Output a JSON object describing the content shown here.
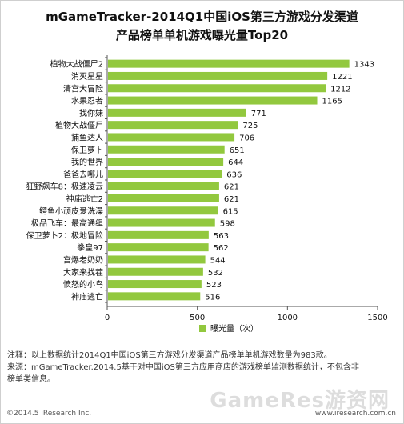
{
  "chart_data": {
    "type": "bar",
    "orientation": "horizontal",
    "title": "mGameTracker-2014Q1中国iOS第三方游戏分发渠道",
    "subtitle": "产品榜单单机游戏曝光量Top20",
    "categories": [
      "植物大战僵尸2",
      "消灭星星",
      "清宫大冒险",
      "水果忍者",
      "找你妹",
      "植物大战僵尸",
      "捕鱼达人",
      "保卫萝卜",
      "我的世界",
      "爸爸去哪儿",
      "狂野飙车8：极速凌云",
      "神庙逃亡2",
      "鳄鱼小顽皮爱洗澡",
      "极品飞车：最高通缉",
      "保卫萝卜2：极地冒险",
      "拳皇97",
      "宫爆老奶奶",
      "大家来找茬",
      "愤怒的小鸟",
      "神庙逃亡"
    ],
    "values": [
      1343,
      1221,
      1212,
      1165,
      771,
      725,
      706,
      651,
      644,
      636,
      621,
      621,
      615,
      598,
      563,
      562,
      544,
      532,
      523,
      516
    ],
    "xlim": [
      0,
      1500
    ],
    "xticks": [
      "0",
      "500",
      "1000",
      "1500"
    ],
    "legend": "曝光量（次）",
    "legend_position": "bottom",
    "grid": false,
    "bar_color": "#92c83e"
  },
  "notes": {
    "line1": "注释：以上数据统计2014Q1中国iOS第三方游戏分发渠道产品榜单单机游戏数量为983款。",
    "line2": "来源：mGameTracker.2014.5基于对中国iOS第三方应用商店的游戏榜单监测数据统计，不包含非",
    "line3": "榜单类信息。"
  },
  "footer": {
    "copyright": "©2014.5 iResearch Inc.",
    "website": "www.iresearch.com.cn",
    "watermark": "GameRes游资网"
  }
}
